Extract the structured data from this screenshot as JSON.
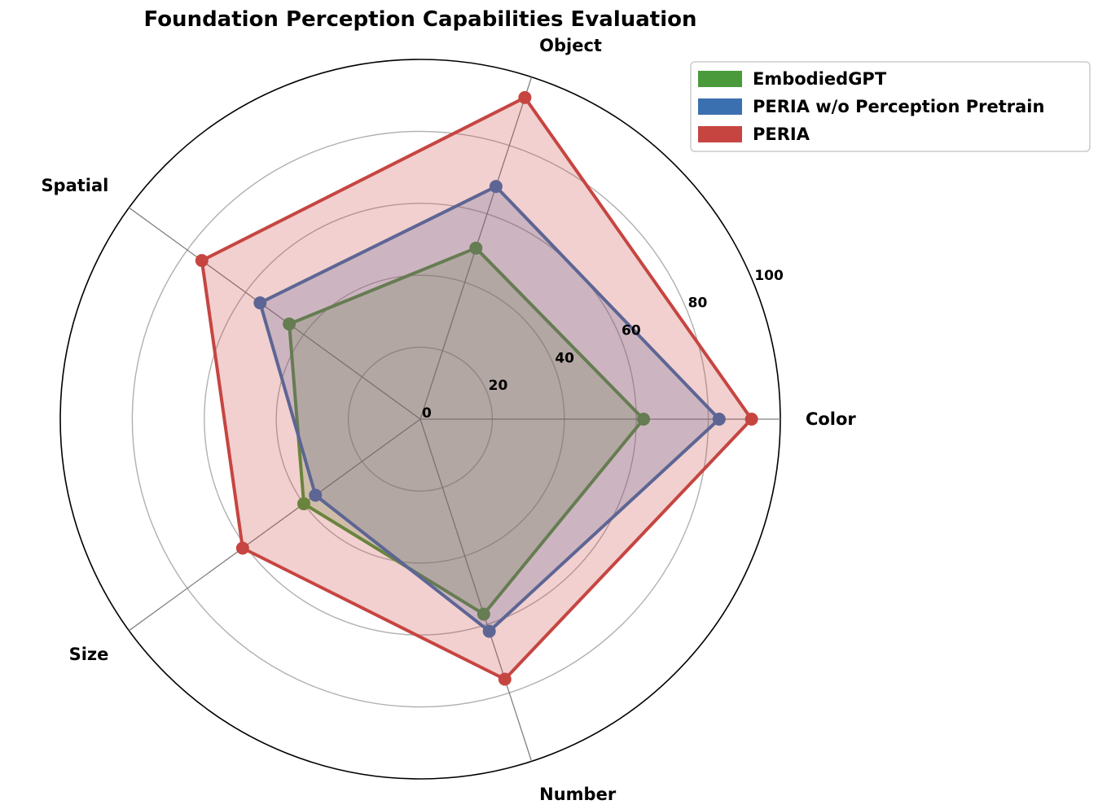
{
  "chart_data": {
    "type": "radar",
    "title": "Foundation Perception Capabilities Evaluation",
    "categories": [
      "Color",
      "Object",
      "Spatial",
      "Size",
      "Number"
    ],
    "rlim": [
      0,
      100
    ],
    "rticks": [
      0,
      20,
      40,
      60,
      80,
      100
    ],
    "rtick_labels": [
      "0",
      "20",
      "40",
      "60",
      "80",
      "100"
    ],
    "grid": true,
    "legend_position": "top-right",
    "series": [
      {
        "name": "EmbodiedGPT",
        "values": [
          62,
          50,
          45,
          40,
          57
        ],
        "color": "#4a9a3c"
      },
      {
        "name": "PERIA w/o Perception Pretrain",
        "values": [
          83,
          68,
          55,
          36,
          62
        ],
        "color": "#3a70b0"
      },
      {
        "name": "PERIA",
        "values": [
          92,
          94,
          75,
          61,
          76
        ],
        "color": "#c64541"
      }
    ]
  }
}
